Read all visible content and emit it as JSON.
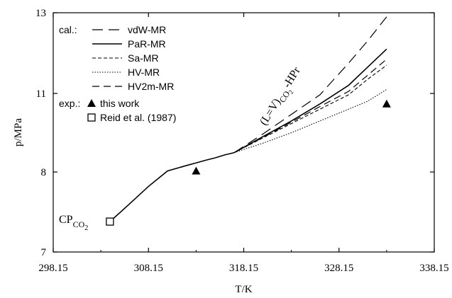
{
  "chart_data": {
    "type": "line",
    "xlabel": "T/K",
    "ylabel": "p/MPa",
    "xlim": [
      298.15,
      338.15
    ],
    "ylim": [
      7,
      13
    ],
    "x_ticks": [
      "298.15",
      "308.15",
      "318.15",
      "328.15",
      "338.15"
    ],
    "y_ticks": [
      "7",
      "8",
      "11",
      "13"
    ],
    "y_tick_values": [
      7,
      8,
      11,
      13
    ],
    "grid": false,
    "legend_position": "top-left",
    "legend_group_calc": "cal.:",
    "legend_group_exp": "exp.:",
    "critical_point_label": {
      "main": "CP",
      "sub": "CO",
      "subsub": "2"
    },
    "curve_label": {
      "prefix": "(L=V)",
      "sub": "CO",
      "subsub": "2",
      "suffix": "-HPr"
    },
    "base_curve": {
      "x": [
        304.1,
        306.15,
        308.15,
        310.15,
        312.15,
        313.15,
        314.15,
        315.15,
        316.15,
        317.15
      ],
      "y": [
        7.38,
        7.6,
        7.82,
        8.04,
        8.25,
        8.35,
        8.45,
        8.54,
        8.65,
        8.74
      ]
    },
    "series": [
      {
        "name": "vdW-MR",
        "style": "longdash",
        "x": [
          317.15,
          320.15,
          323.15,
          326.15,
          329.15,
          331.15,
          333.15
        ],
        "y": [
          8.74,
          9.45,
          10.2,
          10.95,
          11.75,
          12.3,
          12.9
        ]
      },
      {
        "name": "PaR-MR",
        "style": "solid",
        "x": [
          317.15,
          320.15,
          323.15,
          326.15,
          329.15,
          331.15,
          333.15
        ],
        "y": [
          8.74,
          9.35,
          9.95,
          10.6,
          11.2,
          11.65,
          12.1
        ]
      },
      {
        "name": "Sa-MR",
        "style": "shortdash",
        "x": [
          317.15,
          320.15,
          323.15,
          326.15,
          329.15,
          331.15,
          333.15
        ],
        "y": [
          8.74,
          9.3,
          9.85,
          10.4,
          10.95,
          11.35,
          11.7
        ]
      },
      {
        "name": "HV-MR",
        "style": "dotted",
        "x": [
          317.15,
          320.15,
          323.15,
          326.15,
          329.15,
          331.15,
          333.15
        ],
        "y": [
          8.74,
          9.1,
          9.5,
          9.95,
          10.4,
          10.7,
          11.1
        ]
      },
      {
        "name": "HV2m-MR",
        "style": "dash",
        "x": [
          317.15,
          320.15,
          323.15,
          326.15,
          329.15,
          331.15,
          333.15
        ],
        "y": [
          8.74,
          9.32,
          9.9,
          10.5,
          11.05,
          11.45,
          11.85
        ]
      }
    ],
    "points": [
      {
        "name": "this work",
        "marker": "filled-triangle",
        "x": [
          313.15,
          333.15
        ],
        "y": [
          8.04,
          10.6
        ]
      },
      {
        "name": "Reid et al. (1987)",
        "marker": "open-square",
        "x": [
          304.1
        ],
        "y": [
          7.38
        ]
      }
    ]
  }
}
